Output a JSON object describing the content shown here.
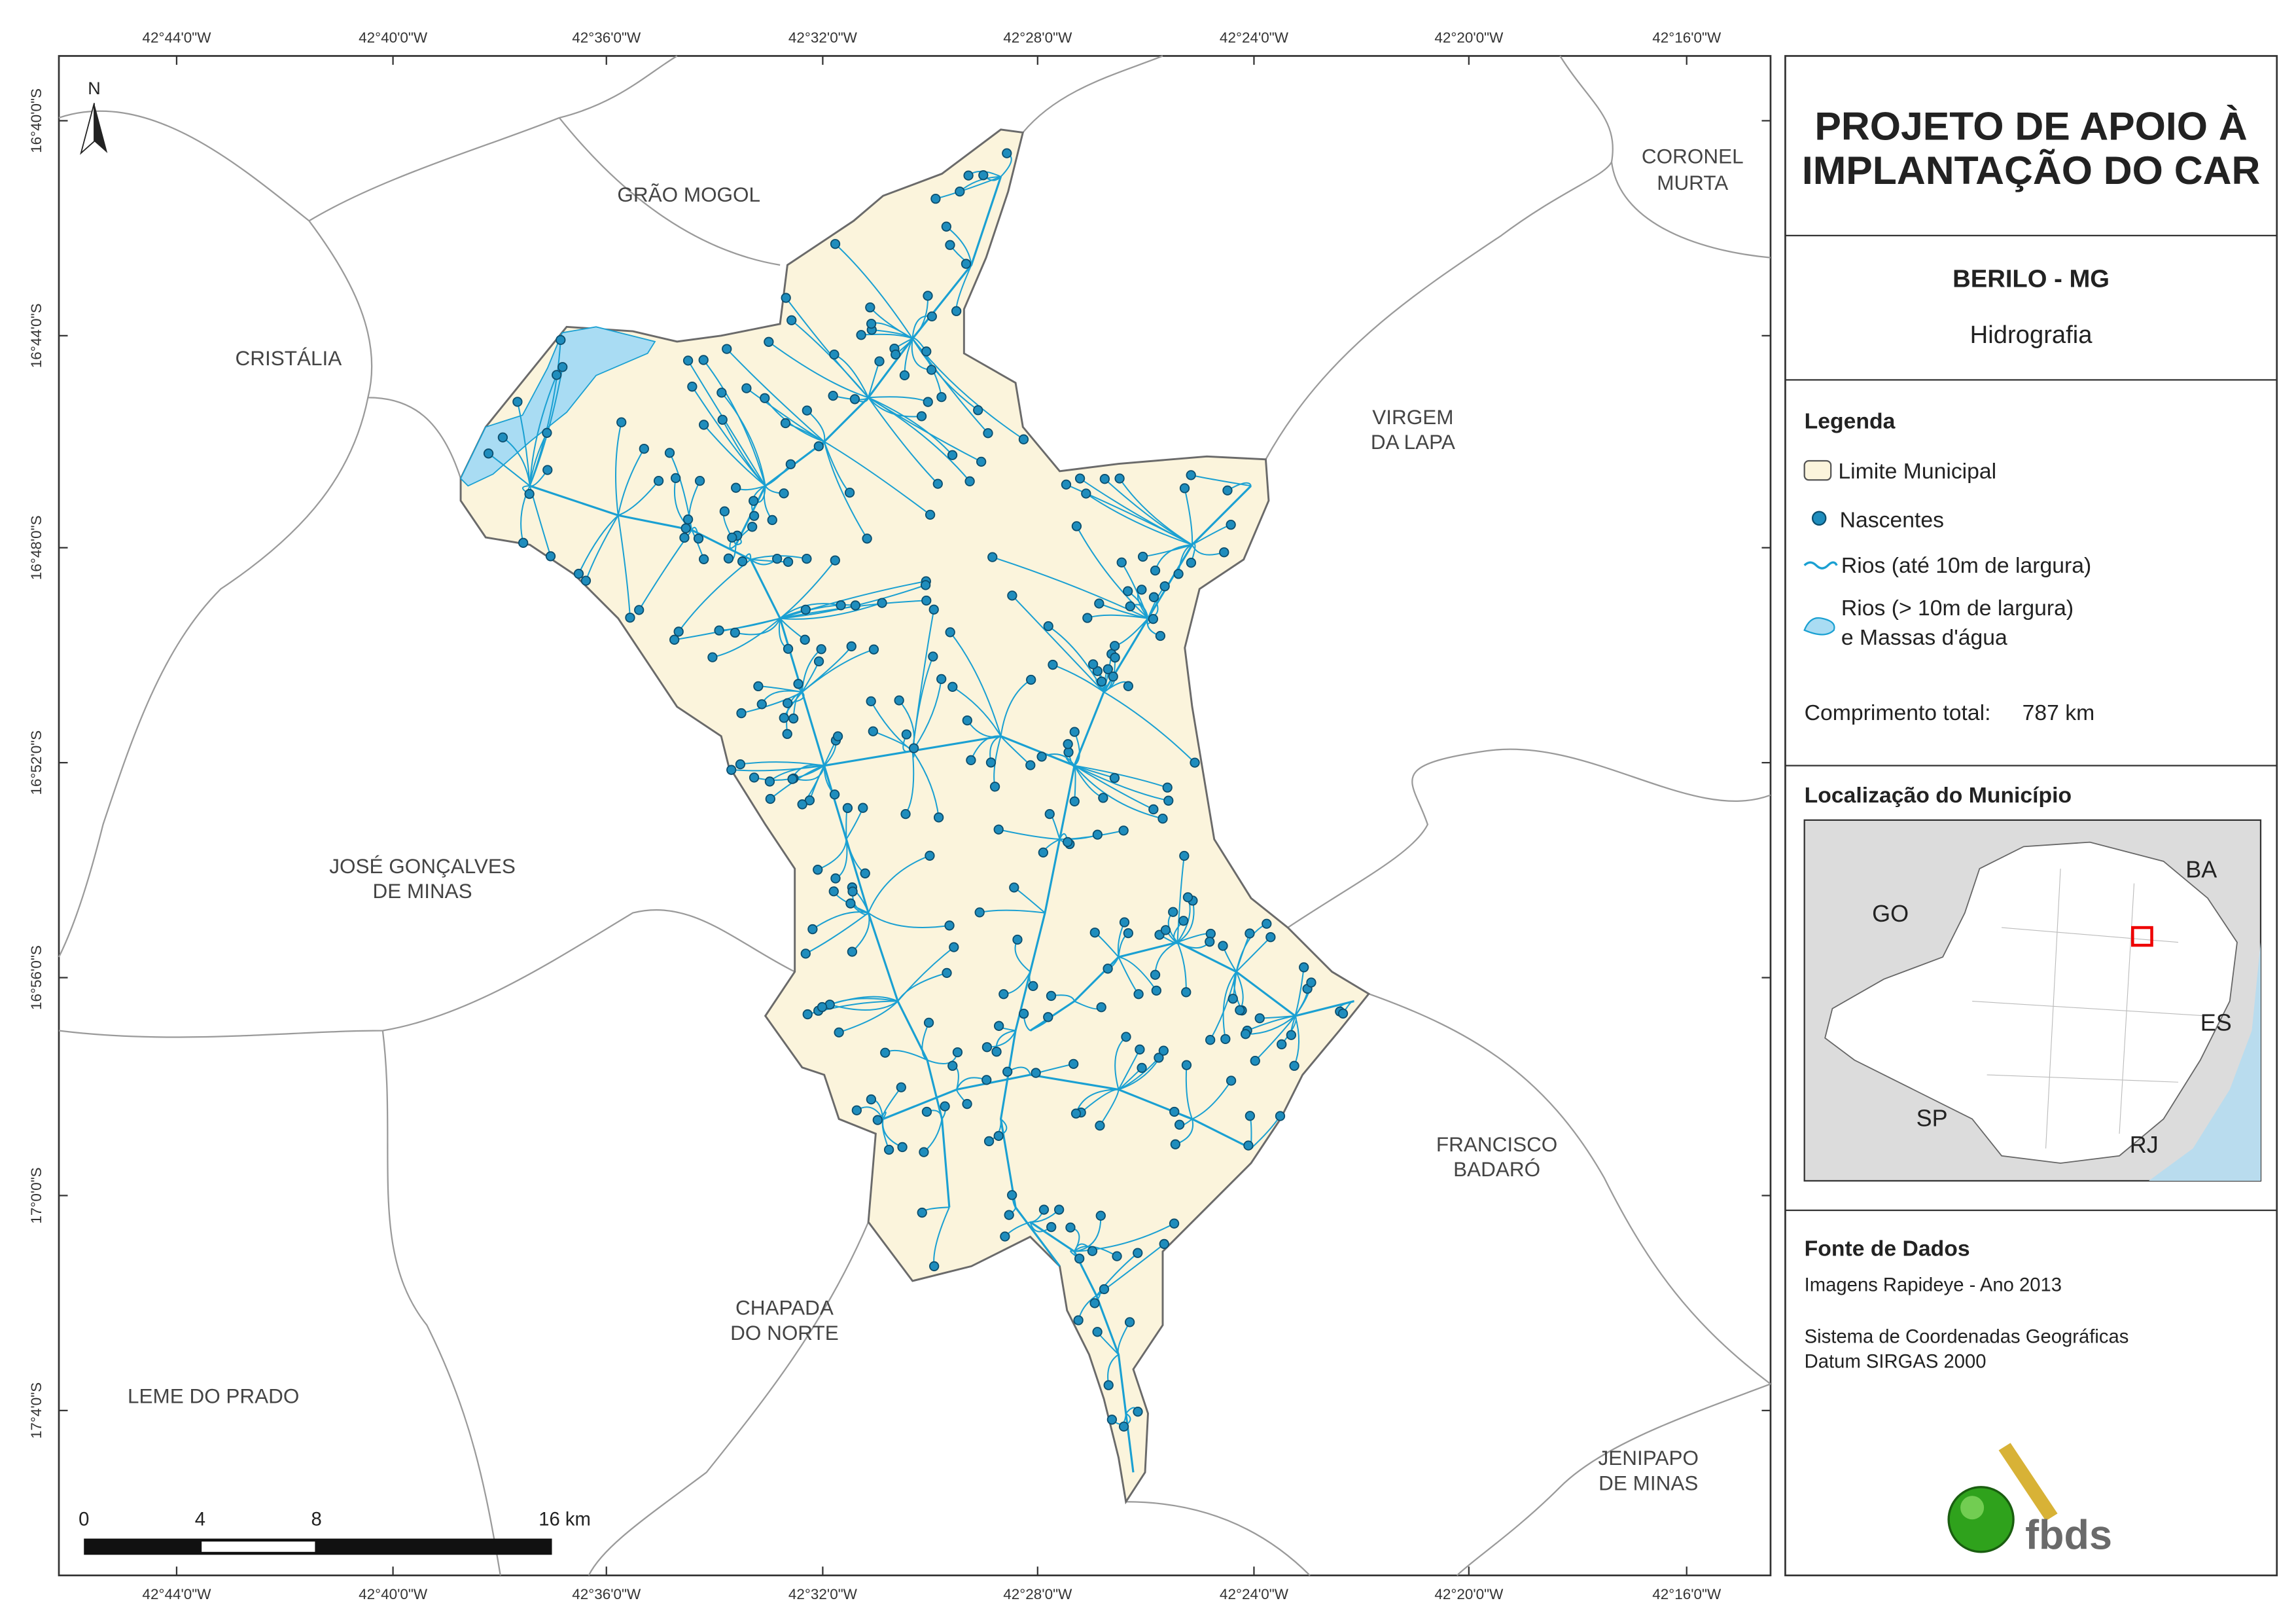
{
  "map": {
    "longitude_labels": [
      "42°44'0\"W",
      "42°40'0\"W",
      "42°36'0\"W",
      "42°32'0\"W",
      "42°28'0\"W",
      "42°24'0\"W",
      "42°20'0\"W",
      "42°16'0\"W"
    ],
    "latitude_labels": [
      "16°40'0\"S",
      "16°44'0\"S",
      "16°48'0\"S",
      "16°52'0\"S",
      "16°56'0\"S",
      "17°0'0\"S",
      "17°4'0\"S"
    ],
    "north": "N",
    "places": [
      {
        "lines": [
          "GRÃO MOGOL"
        ]
      },
      {
        "lines": [
          "CORONEL",
          "MURTA"
        ]
      },
      {
        "lines": [
          "CRISTÁLIA"
        ]
      },
      {
        "lines": [
          "VIRGEM",
          "DA LAPA"
        ]
      },
      {
        "lines": [
          "JOSÉ GONÇALVES",
          "DE MINAS"
        ]
      },
      {
        "lines": [
          "FRANCISCO",
          "BADARÓ"
        ]
      },
      {
        "lines": [
          "CHAPADA",
          "DO NORTE"
        ]
      },
      {
        "lines": [
          "LEME DO PRADO"
        ]
      },
      {
        "lines": [
          "JENIPAPO",
          "DE MINAS"
        ]
      }
    ],
    "scale_bar": [
      "0",
      "4",
      "8",
      "16 km"
    ]
  },
  "panel": {
    "title": [
      "PROJETO DE APOIO À",
      "IMPLANTAÇÃO DO CAR"
    ],
    "municipality": "BERILO - MG",
    "theme": "Hidrografia",
    "legend": {
      "title": "Legenda",
      "items": [
        {
          "lines": [
            "Limite Municipal"
          ]
        },
        {
          "lines": [
            "Nascentes"
          ]
        },
        {
          "lines": [
            "Rios (até 10m de largura)"
          ]
        },
        {
          "lines": [
            "Rios (> 10m de largura)",
            "e Massas d'água"
          ]
        }
      ]
    },
    "total_length": {
      "label": "Comprimento total:",
      "value": "787 km"
    },
    "location": {
      "title": "Localização do Município",
      "labels": [
        "BA",
        "GO",
        "ES",
        "SP",
        "RJ"
      ]
    },
    "source": {
      "title": "Fonte de Dados",
      "lines": [
        "Imagens Rapideye - Ano 2013",
        "Sistema de Coordenadas Geográficas",
        "Datum SIRGAS 2000"
      ]
    },
    "logo": "fbds"
  }
}
